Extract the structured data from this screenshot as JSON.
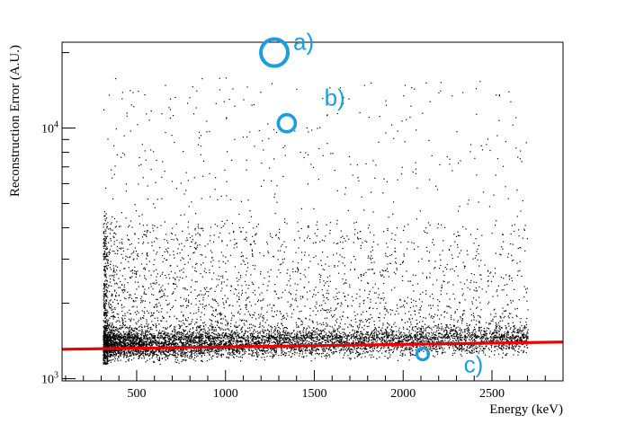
{
  "chart_data": {
    "type": "scatter",
    "xlabel": "Energy (keV)",
    "ylabel": "Reconstruction Error (A.U.)",
    "xlim": [
      80,
      2900
    ],
    "ylim": [
      980,
      22000
    ],
    "yscale": "log",
    "x_ticks": [
      500,
      1000,
      1500,
      2000,
      2500
    ],
    "x_tick_labels": [
      "500",
      "1000",
      "1500",
      "2000",
      "2500"
    ],
    "y_ticks": [
      1000,
      10000
    ],
    "y_tick_labels": [
      {
        "base": "10",
        "exp": "3"
      },
      {
        "base": "10",
        "exp": "4"
      }
    ],
    "grid": false,
    "point_color": "#000000",
    "fit_line": {
      "color": "#ee0000",
      "x": [
        80,
        2900
      ],
      "y": [
        1310,
        1400
      ]
    },
    "point_cloud": {
      "x_range": [
        310,
        2700
      ],
      "dense_band_y": [
        1100,
        1600
      ],
      "sparse_y_max": 16000
    },
    "annotations": [
      {
        "label": "a)",
        "x": 1280,
        "y": 20500,
        "marker_x": 1275,
        "marker_y": 20000,
        "marker_size": "large"
      },
      {
        "label": "b)",
        "x": 1455,
        "y": 12300,
        "marker_x": 1345,
        "marker_y": 10450,
        "marker_size": "medium"
      },
      {
        "label": "c)",
        "x": 2240,
        "y": 1060,
        "marker_x": 2110,
        "marker_y": 1255,
        "marker_size": "small"
      }
    ],
    "annotation_color": "#1a9ee0"
  }
}
